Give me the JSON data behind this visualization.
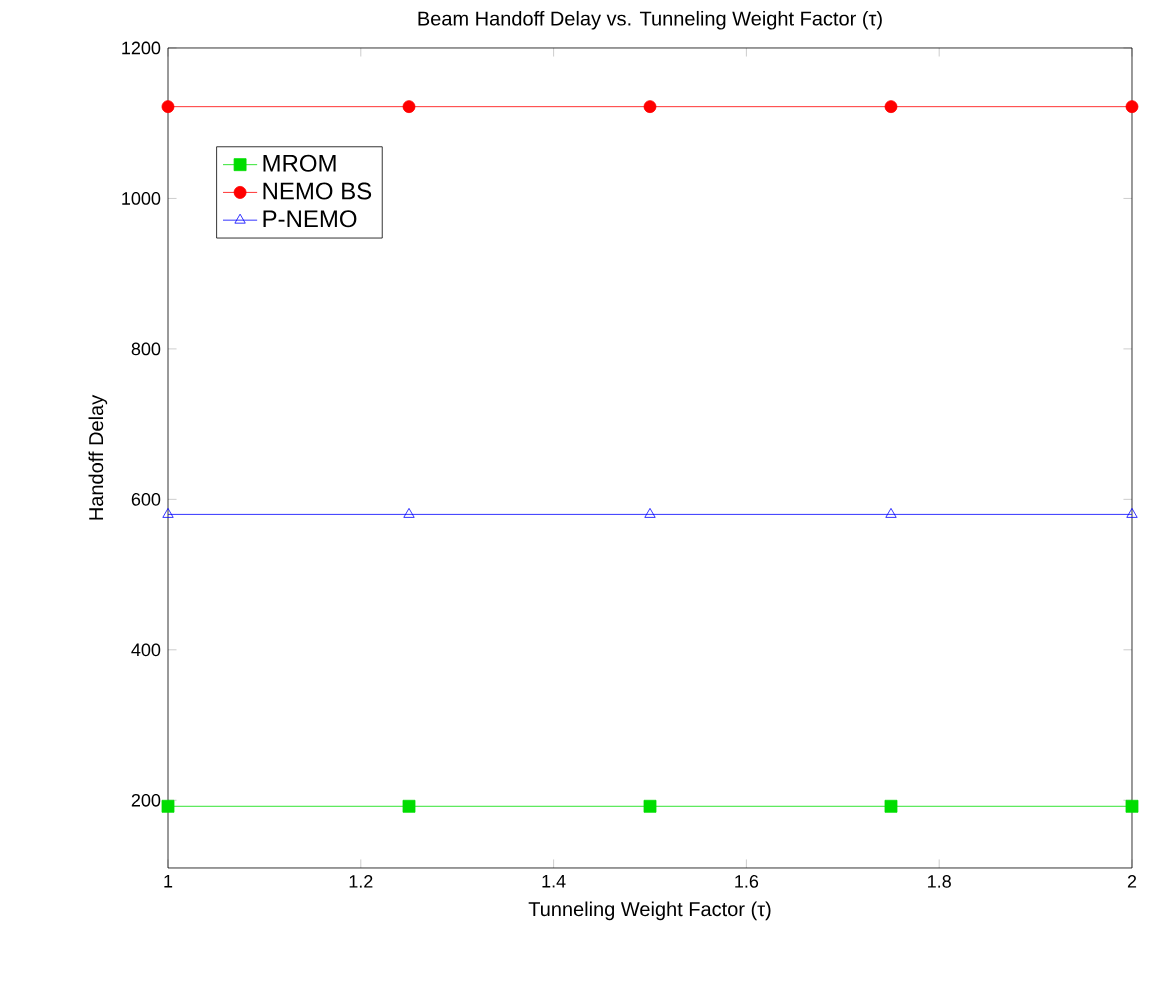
{
  "chart_data": {
    "type": "line",
    "title": "Beam Handoff Delay vs. Tunneling Weight Factor (τ)",
    "xlabel": "Tunneling Weight Factor (τ)",
    "ylabel": "Handoff Delay",
    "x": [
      1,
      1.25,
      1.5,
      1.75,
      2
    ],
    "series": [
      {
        "name": "MROM",
        "color": "#00dd00",
        "marker": "square",
        "values": [
          192,
          192,
          192,
          192,
          192
        ]
      },
      {
        "name": "NEMO BS",
        "color": "#ff0000",
        "marker": "circle",
        "values": [
          1122,
          1122,
          1122,
          1122,
          1122
        ]
      },
      {
        "name": "P-NEMO",
        "color": "#0000ff",
        "marker": "triangle",
        "values": [
          580,
          580,
          580,
          580,
          580
        ]
      }
    ],
    "xlim": [
      1,
      2
    ],
    "xticks": [
      1,
      1.2,
      1.4,
      1.6,
      1.8,
      2
    ],
    "ylim": [
      110,
      1200
    ],
    "yticks": [
      200,
      400,
      600,
      800,
      1000,
      1200
    ],
    "legend": "top left",
    "grid": false,
    "line_style": "solid"
  }
}
